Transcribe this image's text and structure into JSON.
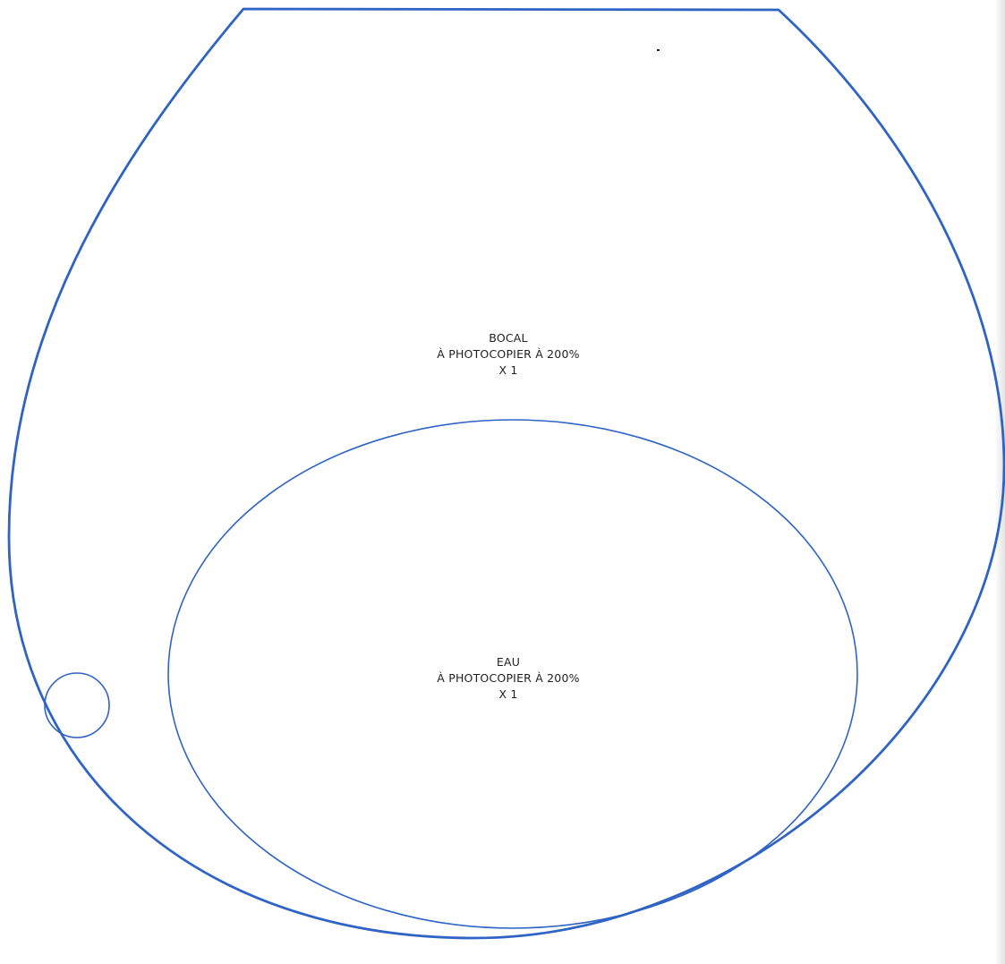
{
  "colors": {
    "outline": "#2f63c4",
    "text": "#1f1f1f",
    "paper": "#ffffff"
  },
  "bocal": {
    "title": "BOCAL",
    "instruction": "À PHOTOCOPIER À 200%",
    "quantity": "X 1"
  },
  "eau": {
    "title": "EAU",
    "instruction": "À PHOTOCOPIER À 200%",
    "quantity": "X 1"
  }
}
